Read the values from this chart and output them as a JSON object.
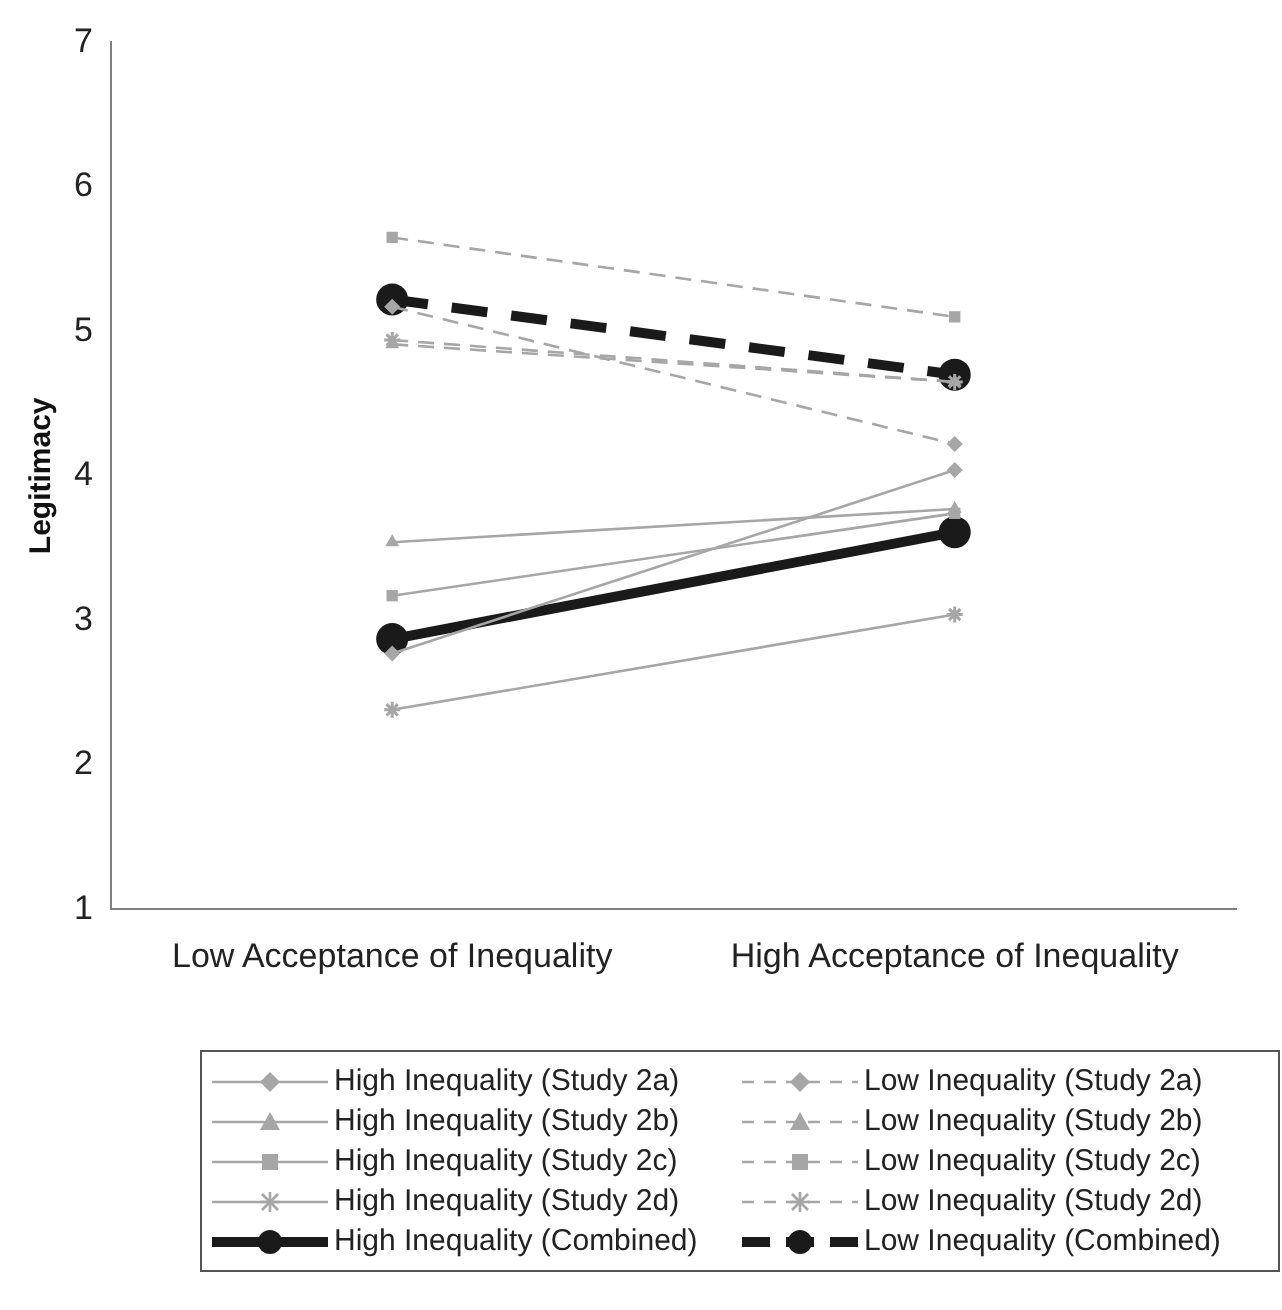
{
  "chart_data": {
    "type": "line",
    "ylabel": "Legitimacy",
    "categories": [
      "Low Acceptance of Inequality",
      "High Acceptance of Inequality"
    ],
    "ylim": [
      1,
      7
    ],
    "yticks": [
      1,
      2,
      3,
      4,
      5,
      6,
      7
    ],
    "grid": false,
    "legend": "bottom",
    "series": [
      {
        "name": "High Inequality (Study 2a)",
        "color": "#a6a6a6",
        "marker": "diamond",
        "line_style": "solid",
        "values": [
          2.77,
          4.04
        ]
      },
      {
        "name": "Low Inequality (Study 2a)",
        "color": "#a6a6a6",
        "marker": "diamond",
        "line_style": "dashed",
        "values": [
          5.17,
          4.22
        ]
      },
      {
        "name": "High Inequality (Study 2b)",
        "color": "#a6a6a6",
        "marker": "triangle",
        "line_style": "solid",
        "values": [
          3.54,
          3.77
        ]
      },
      {
        "name": "Low Inequality (Study 2b)",
        "color": "#a6a6a6",
        "marker": "triangle",
        "line_style": "dashed",
        "values": [
          4.91,
          4.65
        ]
      },
      {
        "name": "High Inequality (Study 2c)",
        "color": "#a6a6a6",
        "marker": "square",
        "line_style": "solid",
        "values": [
          3.17,
          3.74
        ]
      },
      {
        "name": "Low Inequality (Study 2c)",
        "color": "#a6a6a6",
        "marker": "square",
        "line_style": "dashed",
        "values": [
          5.65,
          5.1
        ]
      },
      {
        "name": "High Inequality (Study 2d)",
        "color": "#a6a6a6",
        "marker": "cross",
        "line_style": "solid",
        "values": [
          2.38,
          3.04
        ]
      },
      {
        "name": "Low Inequality (Study 2d)",
        "color": "#a6a6a6",
        "marker": "cross",
        "line_style": "dashed",
        "values": [
          4.94,
          4.65
        ]
      },
      {
        "name": "High Inequality (Combined)",
        "color": "#1a1a1a",
        "marker": "circle",
        "line_style": "solid",
        "values": [
          2.87,
          3.61
        ]
      },
      {
        "name": "Low Inequality (Combined)",
        "color": "#1a1a1a",
        "marker": "circle",
        "line_style": "dashed",
        "values": [
          5.22,
          4.7
        ]
      }
    ]
  }
}
